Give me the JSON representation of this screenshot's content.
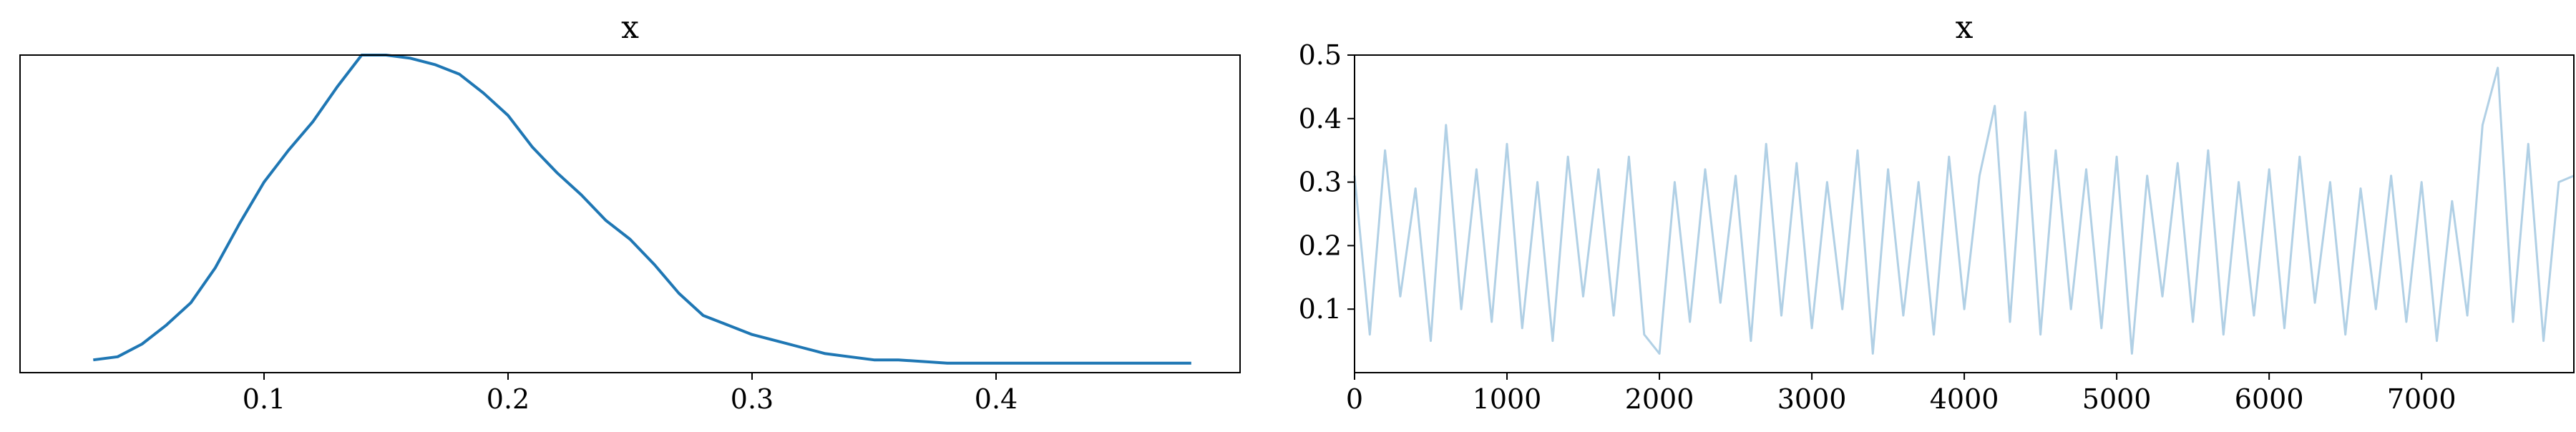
{
  "chart_data": [
    {
      "type": "line",
      "title": "x",
      "xlabel": "",
      "ylabel": "",
      "xlim": [
        0.0,
        0.5
      ],
      "ylim": [
        0.0,
        1.0
      ],
      "x_ticks": [
        0.1,
        0.2,
        0.3,
        0.4
      ],
      "x_tick_labels": [
        "0.1",
        "0.2",
        "0.3",
        "0.4"
      ],
      "y_ticks_visible": false,
      "grid": false,
      "color": "#1f77b4",
      "series": [
        {
          "x": [
            0.03,
            0.04,
            0.05,
            0.06,
            0.07,
            0.08,
            0.09,
            0.1,
            0.11,
            0.12,
            0.13,
            0.14,
            0.15,
            0.16,
            0.17,
            0.18,
            0.19,
            0.2,
            0.21,
            0.22,
            0.23,
            0.24,
            0.25,
            0.26,
            0.27,
            0.28,
            0.29,
            0.3,
            0.31,
            0.32,
            0.33,
            0.34,
            0.35,
            0.36,
            0.38,
            0.4,
            0.42,
            0.44,
            0.46,
            0.48
          ],
          "values": [
            0.04,
            0.05,
            0.09,
            0.15,
            0.22,
            0.33,
            0.47,
            0.6,
            0.7,
            0.79,
            0.9,
            1.0,
            1.0,
            0.99,
            0.97,
            0.94,
            0.88,
            0.81,
            0.71,
            0.63,
            0.56,
            0.48,
            0.42,
            0.34,
            0.25,
            0.18,
            0.15,
            0.12,
            0.1,
            0.08,
            0.06,
            0.05,
            0.04,
            0.04,
            0.03,
            0.03,
            0.03,
            0.03,
            0.03,
            0.03
          ]
        }
      ]
    },
    {
      "type": "line",
      "title": "x",
      "xlabel": "",
      "ylabel": "",
      "xlim": [
        0,
        7999
      ],
      "ylim": [
        0.0,
        0.5
      ],
      "x_ticks": [
        0,
        1000,
        2000,
        3000,
        4000,
        5000,
        6000,
        7000
      ],
      "x_tick_labels": [
        "0",
        "1000",
        "2000",
        "3000",
        "4000",
        "5000",
        "6000",
        "7000"
      ],
      "y_ticks": [
        0.1,
        0.2,
        0.3,
        0.4,
        0.5
      ],
      "y_tick_labels": [
        "0.1",
        "0.2",
        "0.3",
        "0.4",
        "0.5"
      ],
      "grid": false,
      "color": "#1f77b4",
      "alpha": 0.35,
      "series": [
        {
          "x": [
            0,
            100,
            200,
            300,
            400,
            500,
            600,
            700,
            800,
            900,
            1000,
            1100,
            1200,
            1300,
            1400,
            1500,
            1600,
            1700,
            1800,
            1900,
            2000,
            2100,
            2200,
            2300,
            2400,
            2500,
            2600,
            2700,
            2800,
            2900,
            3000,
            3100,
            3200,
            3300,
            3400,
            3500,
            3600,
            3700,
            3800,
            3900,
            4000,
            4100,
            4200,
            4300,
            4400,
            4500,
            4600,
            4700,
            4800,
            4900,
            5000,
            5100,
            5200,
            5300,
            5400,
            5500,
            5600,
            5700,
            5800,
            5900,
            6000,
            6100,
            6200,
            6300,
            6400,
            6500,
            6600,
            6700,
            6800,
            6900,
            7000,
            7100,
            7200,
            7300,
            7400,
            7500,
            7600,
            7700,
            7800,
            7900,
            7999
          ],
          "values": [
            0.31,
            0.06,
            0.35,
            0.12,
            0.29,
            0.05,
            0.39,
            0.1,
            0.32,
            0.08,
            0.36,
            0.07,
            0.3,
            0.05,
            0.34,
            0.12,
            0.32,
            0.09,
            0.34,
            0.06,
            0.03,
            0.3,
            0.08,
            0.32,
            0.11,
            0.31,
            0.05,
            0.36,
            0.09,
            0.33,
            0.07,
            0.3,
            0.1,
            0.35,
            0.03,
            0.32,
            0.09,
            0.3,
            0.06,
            0.34,
            0.1,
            0.31,
            0.42,
            0.08,
            0.41,
            0.06,
            0.35,
            0.1,
            0.32,
            0.07,
            0.34,
            0.03,
            0.31,
            0.12,
            0.33,
            0.08,
            0.35,
            0.06,
            0.3,
            0.09,
            0.32,
            0.07,
            0.34,
            0.11,
            0.3,
            0.06,
            0.29,
            0.1,
            0.31,
            0.08,
            0.3,
            0.05,
            0.27,
            0.09,
            0.39,
            0.48,
            0.08,
            0.36,
            0.05,
            0.3,
            0.31
          ]
        }
      ]
    }
  ]
}
